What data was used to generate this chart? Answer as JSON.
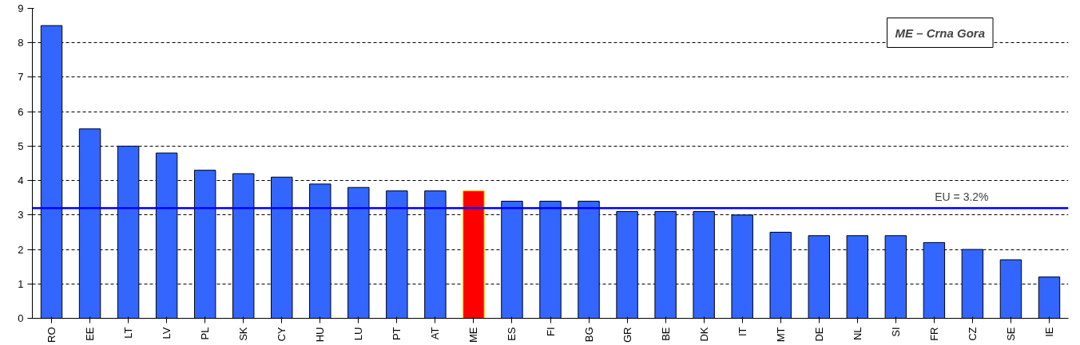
{
  "chart_data": {
    "type": "bar",
    "categories": [
      "RO",
      "EE",
      "LT",
      "LV",
      "PL",
      "SK",
      "CY",
      "HU",
      "LU",
      "PT",
      "AT",
      "ME",
      "ES",
      "FI",
      "BG",
      "GR",
      "BE",
      "DK",
      "IT",
      "MT",
      "DE",
      "NL",
      "SI",
      "FR",
      "CZ",
      "SE",
      "IE"
    ],
    "values": [
      8.5,
      5.5,
      5.0,
      4.8,
      4.3,
      4.2,
      4.1,
      3.9,
      3.8,
      3.7,
      3.7,
      3.7,
      3.4,
      3.4,
      3.4,
      3.1,
      3.1,
      3.1,
      3.0,
      2.5,
      2.4,
      2.4,
      2.4,
      2.2,
      2.0,
      1.7,
      1.2
    ],
    "colors": [
      "#3366ff",
      "#3366ff",
      "#3366ff",
      "#3366ff",
      "#3366ff",
      "#3366ff",
      "#3366ff",
      "#3366ff",
      "#3366ff",
      "#3366ff",
      "#3366ff",
      "#ff0000",
      "#3366ff",
      "#3366ff",
      "#3366ff",
      "#3366ff",
      "#3366ff",
      "#3366ff",
      "#3366ff",
      "#3366ff",
      "#3366ff",
      "#3366ff",
      "#3366ff",
      "#3366ff",
      "#3366ff",
      "#3366ff",
      "#3366ff"
    ],
    "ylim": [
      0,
      9
    ],
    "yticks": [
      0,
      1,
      2,
      3,
      4,
      5,
      6,
      7,
      8,
      9
    ],
    "grid": "y",
    "ref_lines": [
      {
        "axis": "y",
        "value": 3.2,
        "label": "EU  = 3.2%",
        "color": "#0000ff"
      }
    ],
    "annotations": [
      "ME – Crna Gora"
    ]
  }
}
